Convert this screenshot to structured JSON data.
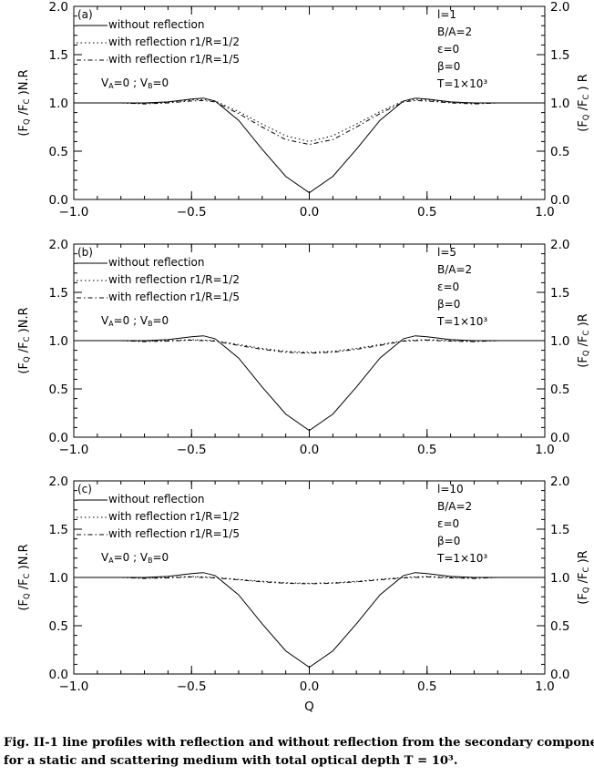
{
  "caption": {
    "line1": "Fig. II-1 line profiles with reflection and without reflection from the secondary components",
    "line2": "for a static and scattering medium with total optical depth T = 10³."
  },
  "chart_data": [
    {
      "type": "line",
      "panel_label": "(a)",
      "xlabel": "",
      "ylabel_left": "(F_Q /F_C )N.R",
      "ylabel_right": "(F_Q /F_C ) R",
      "xlim": [
        -1.0,
        1.0
      ],
      "ylim": [
        0.0,
        2.0
      ],
      "xticks": [
        -1.0,
        -0.5,
        0.0,
        0.5,
        1.0
      ],
      "xtick_labels": [
        "−1.0",
        "−0.5",
        "0.0",
        "0.5",
        "1.0"
      ],
      "yticks": [
        0.0,
        0.5,
        1.0,
        1.5,
        2.0
      ],
      "ytick_labels": [
        "0.0",
        "0.5",
        "1.0",
        "1.5",
        "2.0"
      ],
      "legend": [
        "without reflection",
        "with reflection r1/R=1/2",
        "with reflection r1/R=1/5"
      ],
      "legend_location": "top-left",
      "note_velocity": "V_A=0 ; V_B=0",
      "params": [
        "l=1",
        "B/A=2",
        "ε=0",
        "β=0",
        "T=1×10³"
      ],
      "series": [
        {
          "style": "solid",
          "x": [
            -1.0,
            -0.7,
            -0.6,
            -0.5,
            -0.45,
            -0.4,
            -0.3,
            -0.2,
            -0.1,
            0.0,
            0.1,
            0.2,
            0.3,
            0.4,
            0.45,
            0.5,
            0.6,
            0.7,
            1.0
          ],
          "values": [
            1.0,
            1.0,
            1.01,
            1.04,
            1.05,
            1.02,
            0.82,
            0.52,
            0.24,
            0.07,
            0.24,
            0.52,
            0.82,
            1.02,
            1.05,
            1.04,
            1.01,
            1.0,
            1.0
          ]
        },
        {
          "style": "dotted",
          "x": [
            -1.0,
            -0.8,
            -0.7,
            -0.6,
            -0.5,
            -0.45,
            -0.4,
            -0.3,
            -0.2,
            -0.1,
            0.0,
            0.1,
            0.2,
            0.3,
            0.4,
            0.45,
            0.5,
            0.6,
            0.7,
            0.8,
            1.0
          ],
          "values": [
            1.0,
            1.0,
            0.995,
            1.005,
            1.03,
            1.035,
            1.02,
            0.91,
            0.78,
            0.66,
            0.6,
            0.66,
            0.78,
            0.91,
            1.02,
            1.035,
            1.03,
            1.005,
            0.995,
            1.0,
            1.0
          ]
        },
        {
          "style": "dash-dot",
          "x": [
            -1.0,
            -0.8,
            -0.7,
            -0.6,
            -0.5,
            -0.45,
            -0.4,
            -0.3,
            -0.2,
            -0.1,
            0.0,
            0.1,
            0.2,
            0.3,
            0.4,
            0.45,
            0.5,
            0.6,
            0.7,
            0.8,
            1.0
          ],
          "values": [
            1.0,
            1.0,
            0.99,
            1.0,
            1.02,
            1.025,
            1.01,
            0.89,
            0.75,
            0.62,
            0.57,
            0.62,
            0.75,
            0.89,
            1.01,
            1.025,
            1.02,
            1.0,
            0.99,
            1.0,
            1.0
          ]
        }
      ]
    },
    {
      "type": "line",
      "panel_label": "(b)",
      "xlabel": "",
      "ylabel_left": "(F_Q /F_C )N.R",
      "ylabel_right": "(F_Q /F_C )R",
      "xlim": [
        -1.0,
        1.0
      ],
      "ylim": [
        0.0,
        2.0
      ],
      "xticks": [
        -1.0,
        -0.5,
        0.0,
        0.5,
        1.0
      ],
      "xtick_labels": [
        "−1.0",
        "−0.5",
        "0.0",
        "0.5",
        "1.0"
      ],
      "yticks": [
        0.0,
        0.5,
        1.0,
        1.5,
        2.0
      ],
      "ytick_labels": [
        "0.0",
        "0.5",
        "1.0",
        "1.5",
        "2.0"
      ],
      "legend": [
        "without reflection",
        "with reflection r1/R=1/2",
        "with reflection r1/R=1/5"
      ],
      "legend_location": "top-left",
      "note_velocity": "V_A=0 ; V_B=0",
      "params": [
        "l=5",
        "B/A=2",
        "ε=0",
        "β=0",
        "T=1×10³"
      ],
      "series": [
        {
          "style": "solid",
          "x": [
            -1.0,
            -0.7,
            -0.6,
            -0.5,
            -0.45,
            -0.4,
            -0.3,
            -0.2,
            -0.1,
            0.0,
            0.1,
            0.2,
            0.3,
            0.4,
            0.45,
            0.5,
            0.6,
            0.7,
            1.0
          ],
          "values": [
            1.0,
            1.0,
            1.01,
            1.04,
            1.05,
            1.02,
            0.82,
            0.52,
            0.24,
            0.07,
            0.24,
            0.52,
            0.82,
            1.02,
            1.05,
            1.04,
            1.01,
            1.0,
            1.0
          ]
        },
        {
          "style": "dotted",
          "x": [
            -1.0,
            -0.8,
            -0.7,
            -0.6,
            -0.5,
            -0.4,
            -0.3,
            -0.2,
            -0.1,
            0.0,
            0.1,
            0.2,
            0.3,
            0.4,
            0.5,
            0.6,
            0.7,
            0.8,
            1.0
          ],
          "values": [
            1.0,
            1.0,
            0.995,
            1.0,
            1.01,
            1.0,
            0.96,
            0.92,
            0.89,
            0.88,
            0.89,
            0.92,
            0.96,
            1.0,
            1.01,
            1.0,
            0.995,
            1.0,
            1.0
          ]
        },
        {
          "style": "dash-dot",
          "x": [
            -1.0,
            -0.8,
            -0.7,
            -0.6,
            -0.5,
            -0.4,
            -0.3,
            -0.2,
            -0.1,
            0.0,
            0.1,
            0.2,
            0.3,
            0.4,
            0.5,
            0.6,
            0.7,
            0.8,
            1.0
          ],
          "values": [
            1.0,
            1.0,
            0.99,
            0.995,
            1.005,
            0.995,
            0.95,
            0.91,
            0.88,
            0.87,
            0.88,
            0.91,
            0.95,
            0.995,
            1.005,
            0.995,
            0.99,
            1.0,
            1.0
          ]
        }
      ]
    },
    {
      "type": "line",
      "panel_label": "(c)",
      "xlabel": "Q",
      "ylabel_left": "(F_Q /F_C )N.R",
      "ylabel_right": "(F_Q /F_C )R",
      "xlim": [
        -1.0,
        1.0
      ],
      "ylim": [
        0.0,
        2.0
      ],
      "xticks": [
        -1.0,
        -0.5,
        0.0,
        0.5,
        1.0
      ],
      "xtick_labels": [
        "−1.0",
        "−0.5",
        "0.0",
        "0.5",
        "1.0"
      ],
      "yticks": [
        0.0,
        0.5,
        1.0,
        1.5,
        2.0
      ],
      "ytick_labels": [
        "0.0",
        "0.5",
        "1.0",
        "1.5",
        "2.0"
      ],
      "legend": [
        "without reflection",
        "with reflection r1/R=1/2",
        "with reflection r1/R=1/5"
      ],
      "legend_location": "top-left",
      "note_velocity": "V_A=0 ; V_B=0",
      "params": [
        "l=10",
        "B/A=2",
        "ε=0",
        "β=0",
        "T=1×10³"
      ],
      "series": [
        {
          "style": "solid",
          "x": [
            -1.0,
            -0.7,
            -0.6,
            -0.5,
            -0.45,
            -0.4,
            -0.3,
            -0.2,
            -0.1,
            0.0,
            0.1,
            0.2,
            0.3,
            0.4,
            0.45,
            0.5,
            0.6,
            0.7,
            1.0
          ],
          "values": [
            1.0,
            1.0,
            1.01,
            1.04,
            1.05,
            1.02,
            0.82,
            0.52,
            0.24,
            0.07,
            0.24,
            0.52,
            0.82,
            1.02,
            1.05,
            1.04,
            1.01,
            1.0,
            1.0
          ]
        },
        {
          "style": "dotted",
          "x": [
            -1.0,
            -0.8,
            -0.7,
            -0.6,
            -0.5,
            -0.4,
            -0.3,
            -0.2,
            -0.1,
            0.0,
            0.1,
            0.2,
            0.3,
            0.4,
            0.5,
            0.6,
            0.7,
            0.8,
            1.0
          ],
          "values": [
            1.0,
            1.0,
            0.995,
            1.0,
            1.01,
            1.0,
            0.98,
            0.96,
            0.945,
            0.94,
            0.945,
            0.96,
            0.98,
            1.0,
            1.01,
            1.0,
            0.995,
            1.0,
            1.0
          ]
        },
        {
          "style": "dash-dot",
          "x": [
            -1.0,
            -0.8,
            -0.7,
            -0.6,
            -0.5,
            -0.4,
            -0.3,
            -0.2,
            -0.1,
            0.0,
            0.1,
            0.2,
            0.3,
            0.4,
            0.5,
            0.6,
            0.7,
            0.8,
            1.0
          ],
          "values": [
            1.0,
            1.0,
            0.99,
            0.995,
            1.005,
            0.995,
            0.975,
            0.955,
            0.94,
            0.935,
            0.94,
            0.955,
            0.975,
            0.995,
            1.005,
            0.995,
            0.99,
            1.0,
            1.0
          ]
        }
      ]
    }
  ]
}
